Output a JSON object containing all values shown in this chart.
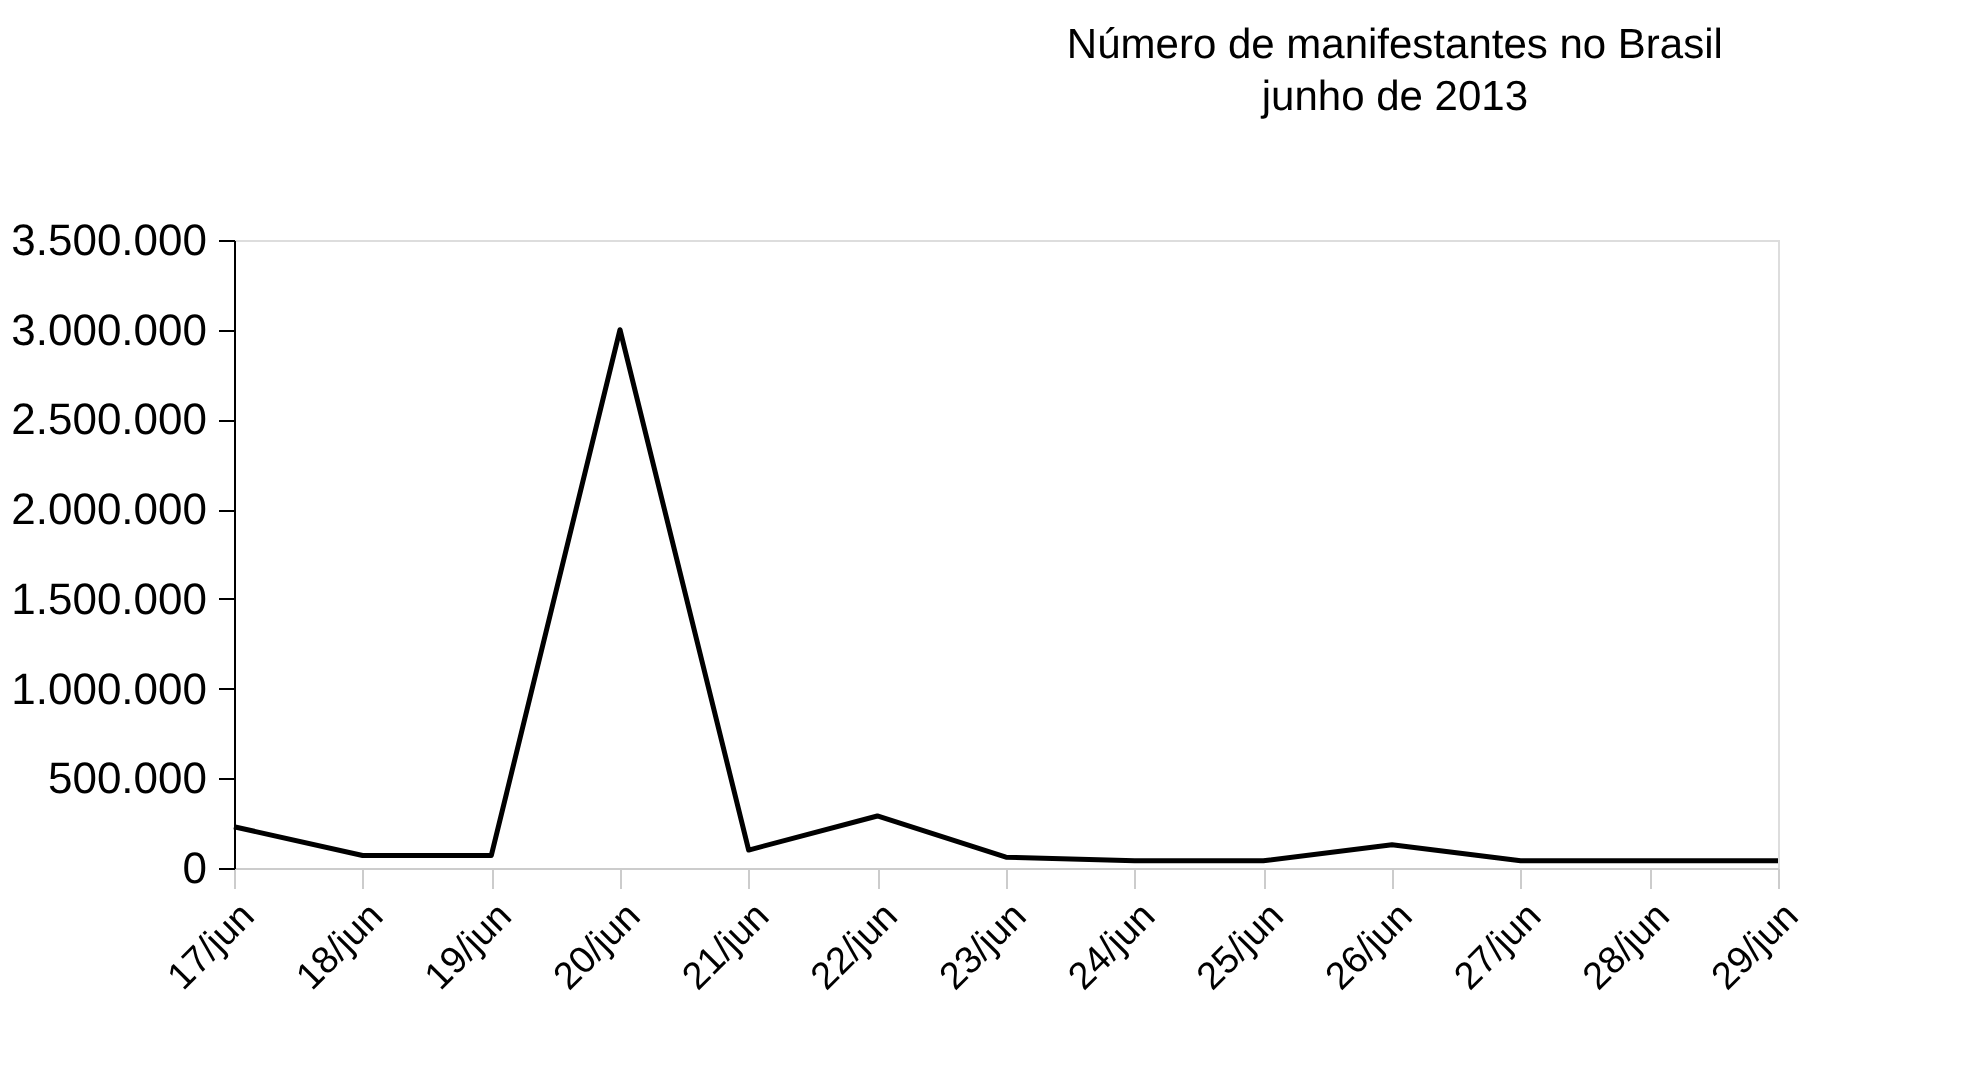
{
  "chart_data": {
    "type": "line",
    "title": "Número de manifestantes no Brasil",
    "subtitle": "junho de 2013",
    "categories": [
      "17/jun",
      "18/jun",
      "19/jun",
      "20/jun",
      "21/jun",
      "22/jun",
      "23/jun",
      "24/jun",
      "25/jun",
      "26/jun",
      "27/jun",
      "28/jun",
      "29/jun"
    ],
    "series": [
      {
        "color": "#000000",
        "values": [
          230000,
          70000,
          70000,
          3000000,
          100000,
          290000,
          60000,
          40000,
          40000,
          130000,
          40000,
          40000,
          40000
        ]
      }
    ],
    "ylim": [
      0,
      3500000
    ],
    "yticks": [
      {
        "value": 0,
        "label": "0"
      },
      {
        "value": 500000,
        "label": "500.000"
      },
      {
        "value": 1000000,
        "label": "1.000.000"
      },
      {
        "value": 1500000,
        "label": "1.500.000"
      },
      {
        "value": 2000000,
        "label": "2.000.000"
      },
      {
        "value": 2500000,
        "label": "2.500.000"
      },
      {
        "value": 3000000,
        "label": "3.000.000"
      },
      {
        "value": 3500000,
        "label": "3.500.000"
      }
    ],
    "grid": false,
    "legend": false,
    "marker": "none",
    "line_style": "solid"
  }
}
